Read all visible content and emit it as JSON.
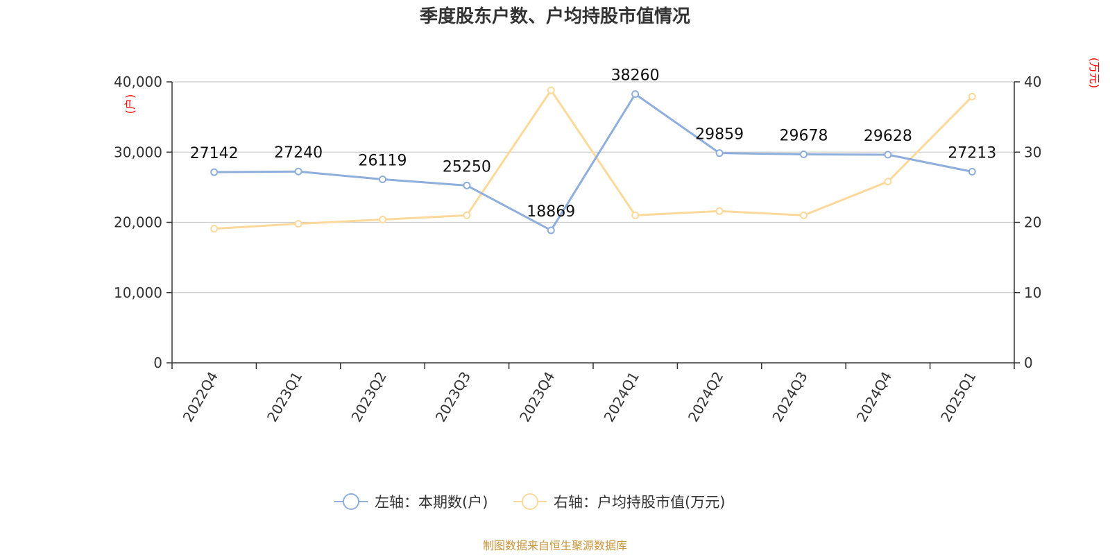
{
  "chart_data": {
    "type": "line",
    "title": "季度股东户数、户均持股市值情况",
    "categories": [
      "2022Q4",
      "2023Q1",
      "2023Q2",
      "2023Q3",
      "2023Q4",
      "2024Q1",
      "2024Q2",
      "2024Q3",
      "2024Q4",
      "2025Q1"
    ],
    "left_axis": {
      "unit": "(户)",
      "range": [
        0,
        40000
      ],
      "ticks": [
        {
          "value": 0,
          "label": "0"
        },
        {
          "value": 10000,
          "label": "10,000"
        },
        {
          "value": 20000,
          "label": "20,000"
        },
        {
          "value": 30000,
          "label": "30,000"
        },
        {
          "value": 40000,
          "label": "40,000"
        }
      ]
    },
    "right_axis": {
      "unit": "(万元)",
      "range": [
        0,
        40
      ],
      "ticks": [
        {
          "value": 0,
          "label": "0"
        },
        {
          "value": 10,
          "label": "10"
        },
        {
          "value": 20,
          "label": "20"
        },
        {
          "value": 30,
          "label": "30"
        },
        {
          "value": 40,
          "label": "40"
        }
      ]
    },
    "series": [
      {
        "name": "左轴：本期数(户)",
        "axis": "left",
        "color": "#8eaedc",
        "values": [
          27142,
          27240,
          26119,
          25250,
          18869,
          38260,
          29859,
          29678,
          29628,
          27213
        ],
        "labels": [
          "27142",
          "27240",
          "26119",
          "25250",
          "18869",
          "38260",
          "29859",
          "29678",
          "29628",
          "27213"
        ]
      },
      {
        "name": "右轴：户均持股市值(万元)",
        "axis": "right",
        "color": "#fcd99a",
        "values": [
          19.1,
          19.8,
          20.4,
          21.0,
          38.8,
          21.0,
          21.6,
          21.0,
          25.8,
          37.9
        ]
      }
    ],
    "grid": true,
    "legend_position": "bottom"
  },
  "source": "制图数据来自恒生聚源数据库"
}
